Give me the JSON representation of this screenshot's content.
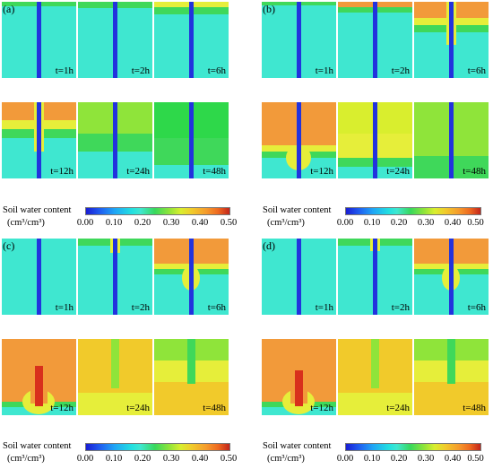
{
  "panels": [
    {
      "label": "(a)",
      "times": [
        "t=1h",
        "t=2h",
        "t=6h",
        "t=12h",
        "t=24h",
        "t=48h"
      ]
    },
    {
      "label": "(b)",
      "times": [
        "t=1h",
        "t=2h",
        "t=6h",
        "t=12h",
        "t=24h",
        "t=48h"
      ]
    },
    {
      "label": "(c)",
      "times": [
        "t=1h",
        "t=2h",
        "t=6h",
        "t=12h",
        "t=24h",
        "t=48h"
      ]
    },
    {
      "label": "(d)",
      "times": [
        "t=1h",
        "t=2h",
        "t=6h",
        "t=12h",
        "t=24h",
        "t=48h"
      ]
    }
  ],
  "legend": {
    "title": "Soil water content",
    "unit": "(cm³/cm³)",
    "ticks": [
      "0.00",
      "0.10",
      "0.20",
      "0.30",
      "0.40",
      "0.50"
    ]
  },
  "colors": {
    "background_cyan": "#3fe7d0",
    "stem_blue": "#2233dd",
    "green": "#3fd85a",
    "yellow": "#e6ee3a",
    "orange": "#f29a3a",
    "red": "#d8301c"
  }
}
